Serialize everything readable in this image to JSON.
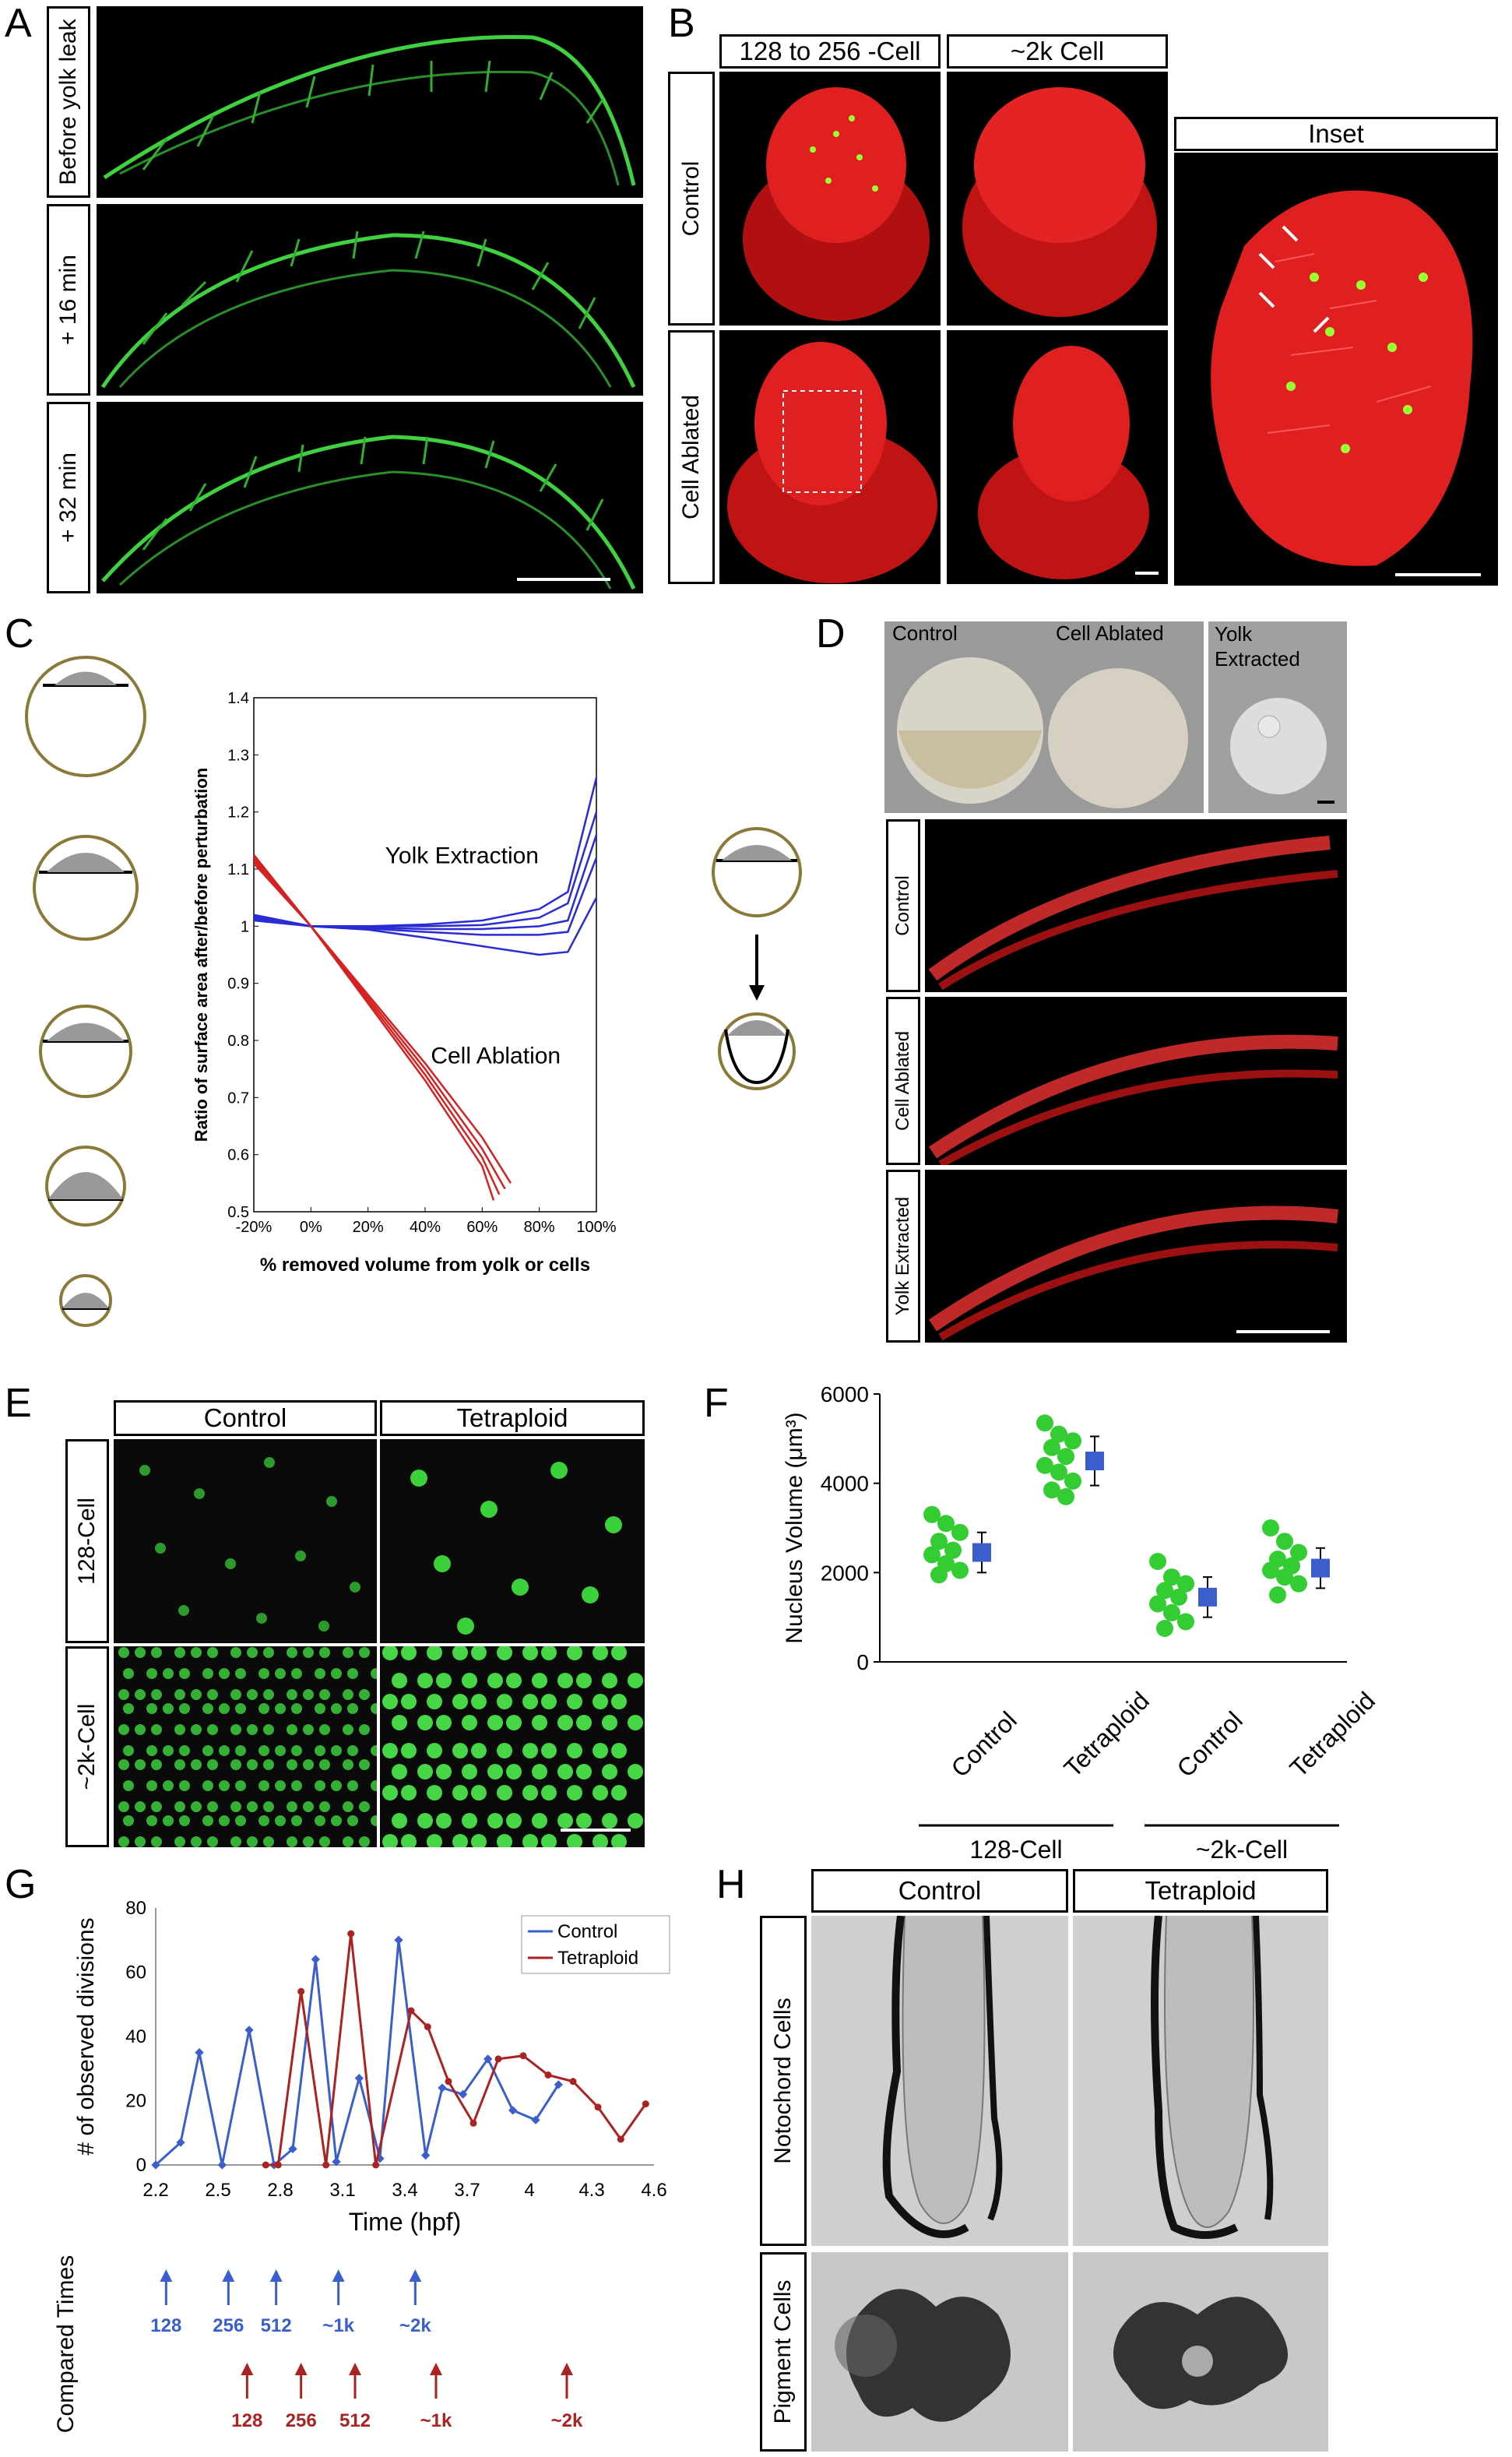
{
  "panels": {
    "A": "A",
    "B": "B",
    "C": "C",
    "D": "D",
    "E": "E",
    "F": "F",
    "G": "G",
    "H": "H"
  },
  "panelA": {
    "rows": [
      "Before yolk leak",
      "+ 16 min",
      "+ 32 min"
    ]
  },
  "panelB": {
    "cols": [
      "128 to 256 -Cell",
      "~2k Cell"
    ],
    "rows": [
      "Control",
      "Cell Ablated"
    ],
    "inset": "Inset"
  },
  "panelC": {
    "ylabel": "Ratio of surface area after/before perturbation",
    "xlabel": "% removed volume from yolk or cells",
    "label_yolk": "Yolk Extraction",
    "label_cell": "Cell Ablation",
    "xticks": [
      "-20%",
      "0%",
      "20%",
      "40%",
      "60%",
      "80%",
      "100%"
    ],
    "yticks": [
      "0.5",
      "0.6",
      "0.7",
      "0.8",
      "0.9",
      "1",
      "1.1",
      "1.2",
      "1.3",
      "1.4"
    ]
  },
  "panelD": {
    "top_labels": [
      "Control",
      "Cell Ablated",
      "Yolk Extracted"
    ],
    "rows": [
      "Control",
      "Cell Ablated",
      "Yolk Extracted"
    ]
  },
  "panelE": {
    "cols": [
      "Control",
      "Tetraploid"
    ],
    "rows": [
      "128-Cell",
      "~2k-Cell"
    ]
  },
  "panelF": {
    "ylabel": "Nucleus Volume (μm³)",
    "yticks": [
      "0",
      "2000",
      "4000",
      "6000"
    ],
    "xlabels": [
      "Control",
      "Tetraploid",
      "Control",
      "Tetraploid"
    ],
    "groups": [
      "128-Cell",
      "~2k-Cell"
    ]
  },
  "panelG": {
    "ylabel": "# of observed divisions",
    "xlabel": "Time (hpf)",
    "xticks": [
      "2.2",
      "2.5",
      "2.8",
      "3.1",
      "3.4",
      "3.7",
      "4",
      "4.3",
      "4.6"
    ],
    "yticks": [
      "0",
      "20",
      "40",
      "60",
      "80"
    ],
    "compared_label": "Compared Times",
    "control_times": [
      "128",
      "256",
      "512",
      "~1k",
      "~2k"
    ],
    "tetraploid_times": [
      "128",
      "256",
      "512",
      "~1k",
      "~2k"
    ]
  },
  "panelH": {
    "cols": [
      "Control",
      "Tetraploid"
    ],
    "rows": [
      "Notochord Cells",
      "Pigment Cells"
    ]
  },
  "colors": {
    "blue": "#3a5fcd",
    "red": "#aa2222",
    "green": "#33cc33",
    "yolk_blue": "#2b2bd6",
    "abl_red": "#d42222"
  },
  "chart_data": [
    {
      "type": "line",
      "title": "",
      "xlabel": "% removed volume from yolk or cells",
      "ylabel": "Ratio of surface area after/before perturbation",
      "xlim": [
        -20,
        100
      ],
      "ylim": [
        0.5,
        1.4
      ],
      "series": [
        {
          "name": "Yolk Extraction",
          "x": [
            -20,
            0,
            20,
            40,
            60,
            80,
            90,
            100
          ],
          "values": [
            1.01,
            1.0,
            1.0,
            1.003,
            1.01,
            1.03,
            1.06,
            1.26
          ]
        },
        {
          "name": "Yolk Extraction",
          "x": [
            -20,
            0,
            20,
            40,
            60,
            80,
            90,
            100
          ],
          "values": [
            1.013,
            1.0,
            1.0,
            1.0,
            1.002,
            1.015,
            1.04,
            1.2
          ]
        },
        {
          "name": "Yolk Extraction",
          "x": [
            -20,
            0,
            20,
            40,
            60,
            80,
            90,
            100
          ],
          "values": [
            1.015,
            1.0,
            0.998,
            0.995,
            0.995,
            1.0,
            1.01,
            1.16
          ]
        },
        {
          "name": "Yolk Extraction",
          "x": [
            -20,
            0,
            20,
            40,
            60,
            80,
            90,
            100
          ],
          "values": [
            1.017,
            1.0,
            0.996,
            0.99,
            0.985,
            0.985,
            0.99,
            1.12
          ]
        },
        {
          "name": "Yolk Extraction",
          "x": [
            -20,
            0,
            20,
            40,
            60,
            80,
            90,
            100
          ],
          "values": [
            1.02,
            1.0,
            0.994,
            0.98,
            0.965,
            0.95,
            0.955,
            1.05
          ]
        },
        {
          "name": "Cell Ablation",
          "x": [
            -20,
            0,
            20,
            40,
            60,
            70
          ],
          "values": [
            1.125,
            1.0,
            0.88,
            0.76,
            0.63,
            0.55
          ]
        },
        {
          "name": "Cell Ablation",
          "x": [
            -20,
            0,
            20,
            40,
            60,
            68
          ],
          "values": [
            1.12,
            1.0,
            0.875,
            0.75,
            0.61,
            0.54
          ]
        },
        {
          "name": "Cell Ablation",
          "x": [
            -20,
            0,
            20,
            40,
            60,
            66
          ],
          "values": [
            1.115,
            1.0,
            0.87,
            0.74,
            0.595,
            0.53
          ]
        },
        {
          "name": "Cell Ablation",
          "x": [
            -20,
            0,
            20,
            40,
            60,
            64
          ],
          "values": [
            1.11,
            1.0,
            0.865,
            0.73,
            0.58,
            0.52
          ]
        }
      ]
    },
    {
      "type": "scatter",
      "ylabel": "Nucleus Volume (μm³)",
      "ylim": [
        0,
        6000
      ],
      "categories": [
        "Control",
        "Tetraploid",
        "Control",
        "Tetraploid"
      ],
      "series": [
        {
          "name": "points",
          "values": [
            [
              3300,
              3100,
              2900,
              2700,
              2500,
              2400,
              2200,
              2050,
              1950
            ],
            [
              5350,
              5100,
              4950,
              4800,
              4600,
              4400,
              4250,
              4050,
              3850,
              3700
            ],
            [
              2250,
              1900,
              1750,
              1600,
              1450,
              1300,
              1100,
              900,
              750
            ],
            [
              3000,
              2700,
              2450,
              2300,
              2150,
              2050,
              1900,
              1750,
              1500
            ]
          ]
        },
        {
          "name": "mean",
          "values": [
            2450,
            4500,
            1450,
            2100
          ],
          "error": [
            450,
            550,
            450,
            450
          ]
        }
      ]
    },
    {
      "type": "line",
      "xlabel": "Time (hpf)",
      "ylabel": "# of observed divisions",
      "xlim": [
        2.2,
        4.6
      ],
      "ylim": [
        0,
        80
      ],
      "series": [
        {
          "name": "Control",
          "x": [
            2.2,
            2.32,
            2.41,
            2.52,
            2.65,
            2.77,
            2.86,
            2.97,
            3.07,
            3.18,
            3.28,
            3.37,
            3.5,
            3.58,
            3.68,
            3.8,
            3.92,
            4.03,
            4.14
          ],
          "values": [
            0,
            7,
            35,
            0,
            42,
            0,
            5,
            64,
            1,
            27,
            2,
            70,
            3,
            24,
            22,
            33,
            17,
            14,
            25
          ]
        },
        {
          "name": "Tetraploid",
          "x": [
            2.73,
            2.79,
            2.9,
            3.02,
            3.14,
            3.26,
            3.43,
            3.51,
            3.61,
            3.73,
            3.85,
            3.97,
            4.09,
            4.21,
            4.33,
            4.44,
            4.56
          ],
          "values": [
            0,
            0,
            54,
            0,
            72,
            0,
            48,
            43,
            26,
            13,
            33,
            34,
            28,
            26,
            18,
            8,
            19
          ]
        }
      ]
    }
  ]
}
